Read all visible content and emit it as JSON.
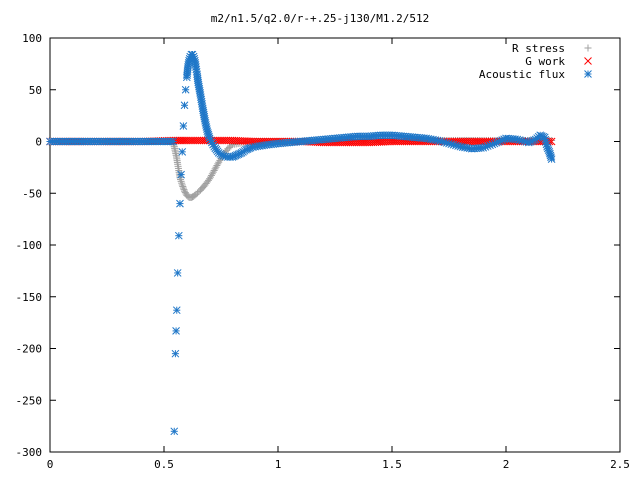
{
  "chart_data": {
    "type": "scatter",
    "title": "m2/n1.5/q2.0/r-+.25-j130/M1.2/512",
    "xlim": [
      0,
      2.5
    ],
    "ylim": [
      -300,
      100
    ],
    "x_ticks": [
      "0",
      "0.5",
      "1",
      "1.5",
      "2",
      "2.5"
    ],
    "y_ticks": [
      "100",
      "50",
      "0",
      "-50",
      "-100",
      "-150",
      "-200",
      "-250",
      "-300"
    ],
    "legend_position": "top-right",
    "grid": false,
    "series": [
      {
        "name": "R stress",
        "marker": "plus",
        "color": "#a0a0a0",
        "points": [
          [
            0.0,
            0
          ],
          [
            0.2,
            0
          ],
          [
            0.4,
            0
          ],
          [
            0.5,
            0
          ],
          [
            0.54,
            0
          ],
          [
            0.545,
            -5
          ],
          [
            0.55,
            -10
          ],
          [
            0.555,
            -15
          ],
          [
            0.56,
            -22
          ],
          [
            0.565,
            -28
          ],
          [
            0.57,
            -35
          ],
          [
            0.58,
            -42
          ],
          [
            0.59,
            -48
          ],
          [
            0.6,
            -52
          ],
          [
            0.61,
            -54
          ],
          [
            0.62,
            -54
          ],
          [
            0.63,
            -53
          ],
          [
            0.64,
            -51
          ],
          [
            0.66,
            -47
          ],
          [
            0.68,
            -42
          ],
          [
            0.7,
            -36
          ],
          [
            0.72,
            -28
          ],
          [
            0.74,
            -20
          ],
          [
            0.76,
            -13
          ],
          [
            0.78,
            -7
          ],
          [
            0.8,
            -3
          ],
          [
            0.85,
            -1
          ],
          [
            0.9,
            0
          ],
          [
            1.0,
            0
          ],
          [
            1.5,
            1
          ],
          [
            2.0,
            1
          ],
          [
            2.2,
            1
          ]
        ]
      },
      {
        "name": "G work",
        "marker": "cross",
        "color": "#ff0000",
        "points": [
          [
            0.0,
            0
          ],
          [
            0.2,
            0
          ],
          [
            0.4,
            0
          ],
          [
            0.55,
            1
          ],
          [
            0.6,
            1
          ],
          [
            0.7,
            1
          ],
          [
            0.8,
            1
          ],
          [
            0.9,
            0
          ],
          [
            1.0,
            0
          ],
          [
            1.1,
            0
          ],
          [
            1.2,
            -1
          ],
          [
            1.3,
            -1
          ],
          [
            1.4,
            -1
          ],
          [
            1.5,
            0
          ],
          [
            1.6,
            0
          ],
          [
            1.7,
            0
          ],
          [
            1.8,
            0
          ],
          [
            1.9,
            0
          ],
          [
            2.0,
            0
          ],
          [
            2.1,
            0
          ],
          [
            2.2,
            0
          ]
        ]
      },
      {
        "name": "Acoustic flux",
        "marker": "star",
        "color": "#1f77c8",
        "points": [
          [
            0.0,
            0
          ],
          [
            0.1,
            0
          ],
          [
            0.2,
            0
          ],
          [
            0.3,
            0
          ],
          [
            0.4,
            0
          ],
          [
            0.5,
            0
          ],
          [
            0.54,
            0
          ],
          [
            0.545,
            -280
          ],
          [
            0.55,
            -205
          ],
          [
            0.553,
            -183
          ],
          [
            0.556,
            -163
          ],
          [
            0.56,
            -127
          ],
          [
            0.565,
            -91
          ],
          [
            0.57,
            -60
          ],
          [
            0.575,
            -32
          ],
          [
            0.58,
            -10
          ],
          [
            0.585,
            15
          ],
          [
            0.59,
            35
          ],
          [
            0.595,
            50
          ],
          [
            0.6,
            62
          ],
          [
            0.605,
            72
          ],
          [
            0.61,
            78
          ],
          [
            0.615,
            82
          ],
          [
            0.62,
            84
          ],
          [
            0.625,
            84
          ],
          [
            0.63,
            82
          ],
          [
            0.635,
            78
          ],
          [
            0.64,
            72
          ],
          [
            0.645,
            65
          ],
          [
            0.65,
            57
          ],
          [
            0.66,
            45
          ],
          [
            0.67,
            32
          ],
          [
            0.68,
            20
          ],
          [
            0.69,
            10
          ],
          [
            0.7,
            3
          ],
          [
            0.72,
            -5
          ],
          [
            0.74,
            -11
          ],
          [
            0.76,
            -14
          ],
          [
            0.78,
            -15
          ],
          [
            0.8,
            -15
          ],
          [
            0.82,
            -13
          ],
          [
            0.84,
            -11
          ],
          [
            0.86,
            -8
          ],
          [
            0.88,
            -6
          ],
          [
            0.9,
            -5
          ],
          [
            0.93,
            -4
          ],
          [
            0.96,
            -3
          ],
          [
            1.0,
            -2
          ],
          [
            1.05,
            -1
          ],
          [
            1.1,
            0
          ],
          [
            1.15,
            1
          ],
          [
            1.2,
            2
          ],
          [
            1.25,
            3
          ],
          [
            1.3,
            4
          ],
          [
            1.35,
            5
          ],
          [
            1.4,
            5
          ],
          [
            1.45,
            6
          ],
          [
            1.5,
            6
          ],
          [
            1.55,
            5
          ],
          [
            1.6,
            4
          ],
          [
            1.65,
            3
          ],
          [
            1.7,
            1
          ],
          [
            1.75,
            -2
          ],
          [
            1.8,
            -5
          ],
          [
            1.85,
            -7
          ],
          [
            1.9,
            -6
          ],
          [
            1.95,
            -2
          ],
          [
            2.0,
            3
          ],
          [
            2.05,
            2
          ],
          [
            2.1,
            -1
          ],
          [
            2.13,
            2
          ],
          [
            2.15,
            6
          ],
          [
            2.17,
            4
          ],
          [
            2.18,
            -5
          ],
          [
            2.19,
            -10
          ],
          [
            2.2,
            -17
          ]
        ]
      }
    ]
  }
}
